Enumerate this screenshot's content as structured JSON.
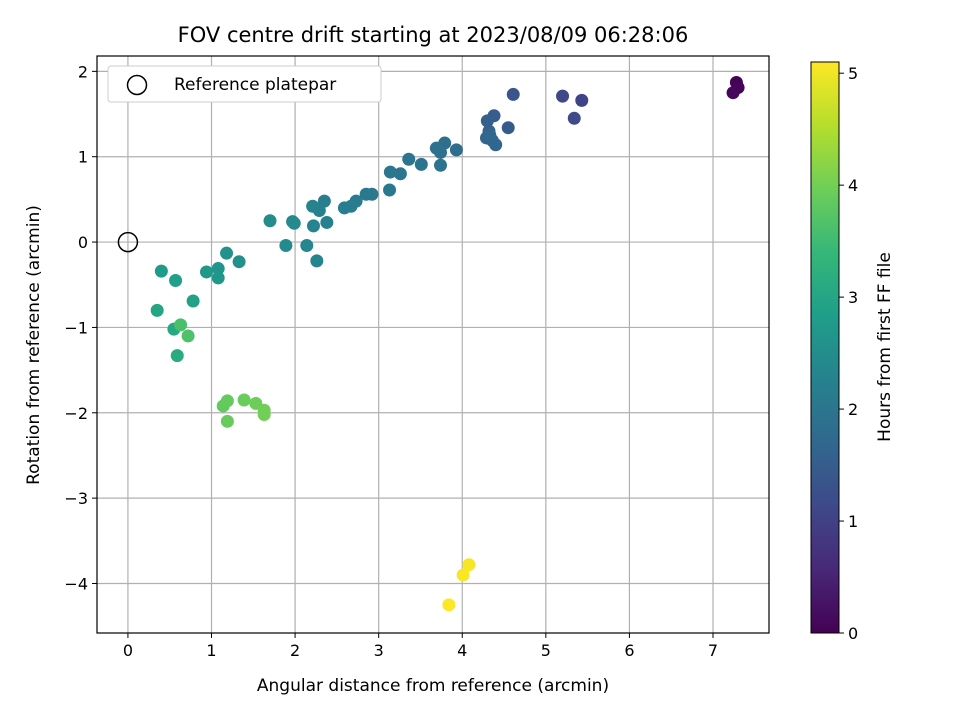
{
  "chart_data": {
    "type": "scatter",
    "title": "FOV centre drift starting at 2023/08/09 06:28:06",
    "xlabel": "Angular distance from reference (arcmin)",
    "ylabel": "Rotation from reference (arcmin)",
    "xlim": [
      -0.37,
      7.67
    ],
    "ylim": [
      -4.58,
      2.18
    ],
    "x_ticks": [
      0,
      1,
      2,
      3,
      4,
      5,
      6,
      7
    ],
    "y_ticks": [
      -4,
      -3,
      -2,
      -1,
      0,
      1,
      2
    ],
    "x_tick_labels": [
      "0",
      "1",
      "2",
      "3",
      "4",
      "5",
      "6",
      "7"
    ],
    "y_tick_labels": [
      "−4",
      "−3",
      "−2",
      "−1",
      "0",
      "1",
      "2"
    ],
    "grid": true,
    "legend": {
      "placement": "top-left",
      "entries": [
        {
          "label": "Reference platepar",
          "marker": "open-circle"
        }
      ]
    },
    "reference_point": {
      "x": 0,
      "y": 0
    },
    "colorbar": {
      "label": "Hours from first FF file",
      "range": [
        0,
        5.1
      ],
      "ticks": [
        0,
        1,
        2,
        3,
        4,
        5
      ],
      "tick_labels": [
        "0",
        "1",
        "2",
        "3",
        "4",
        "5"
      ],
      "colormap": "viridis",
      "stops": [
        "#440154",
        "#482878",
        "#3e4989",
        "#31688e",
        "#26828e",
        "#1f9e89",
        "#35b779",
        "#6ece58",
        "#b5de2b",
        "#fde725"
      ]
    },
    "points": [
      {
        "x": 7.28,
        "y": 1.87,
        "c": 0.02
      },
      {
        "x": 7.3,
        "y": 1.81,
        "c": 0.05
      },
      {
        "x": 7.24,
        "y": 1.75,
        "c": 0.08
      },
      {
        "x": 5.43,
        "y": 1.66,
        "c": 1.05
      },
      {
        "x": 5.2,
        "y": 1.71,
        "c": 1.1
      },
      {
        "x": 5.34,
        "y": 1.45,
        "c": 1.15
      },
      {
        "x": 4.61,
        "y": 1.73,
        "c": 1.35
      },
      {
        "x": 4.55,
        "y": 1.34,
        "c": 1.45
      },
      {
        "x": 4.38,
        "y": 1.48,
        "c": 1.5
      },
      {
        "x": 4.3,
        "y": 1.42,
        "c": 1.55
      },
      {
        "x": 4.32,
        "y": 1.3,
        "c": 1.58
      },
      {
        "x": 4.29,
        "y": 1.22,
        "c": 1.62
      },
      {
        "x": 4.36,
        "y": 1.19,
        "c": 1.65
      },
      {
        "x": 4.4,
        "y": 1.14,
        "c": 1.68
      },
      {
        "x": 4.33,
        "y": 1.25,
        "c": 1.72
      },
      {
        "x": 3.93,
        "y": 1.08,
        "c": 1.8
      },
      {
        "x": 3.79,
        "y": 1.16,
        "c": 1.85
      },
      {
        "x": 3.69,
        "y": 1.1,
        "c": 1.88
      },
      {
        "x": 3.74,
        "y": 1.05,
        "c": 1.9
      },
      {
        "x": 3.74,
        "y": 0.9,
        "c": 1.92
      },
      {
        "x": 3.51,
        "y": 0.91,
        "c": 1.95
      },
      {
        "x": 3.36,
        "y": 0.97,
        "c": 1.98
      },
      {
        "x": 3.26,
        "y": 0.8,
        "c": 2.0
      },
      {
        "x": 3.14,
        "y": 0.82,
        "c": 2.02
      },
      {
        "x": 3.13,
        "y": 0.61,
        "c": 2.05
      },
      {
        "x": 2.92,
        "y": 0.56,
        "c": 2.08
      },
      {
        "x": 2.85,
        "y": 0.56,
        "c": 2.1
      },
      {
        "x": 2.73,
        "y": 0.48,
        "c": 2.12
      },
      {
        "x": 2.67,
        "y": 0.42,
        "c": 2.15
      },
      {
        "x": 2.59,
        "y": 0.4,
        "c": 2.18
      },
      {
        "x": 2.35,
        "y": 0.48,
        "c": 2.2
      },
      {
        "x": 2.38,
        "y": 0.23,
        "c": 2.22
      },
      {
        "x": 2.29,
        "y": 0.37,
        "c": 2.25
      },
      {
        "x": 2.21,
        "y": 0.42,
        "c": 2.28
      },
      {
        "x": 2.22,
        "y": 0.19,
        "c": 2.3
      },
      {
        "x": 2.26,
        "y": -0.22,
        "c": 2.32
      },
      {
        "x": 2.14,
        "y": -0.04,
        "c": 2.35
      },
      {
        "x": 1.97,
        "y": 0.24,
        "c": 2.4
      },
      {
        "x": 1.99,
        "y": 0.22,
        "c": 2.42
      },
      {
        "x": 1.89,
        "y": -0.04,
        "c": 2.45
      },
      {
        "x": 1.7,
        "y": 0.25,
        "c": 2.48
      },
      {
        "x": 1.33,
        "y": -0.23,
        "c": 2.55
      },
      {
        "x": 1.18,
        "y": -0.13,
        "c": 2.6
      },
      {
        "x": 1.08,
        "y": -0.31,
        "c": 2.65
      },
      {
        "x": 1.08,
        "y": -0.42,
        "c": 2.68
      },
      {
        "x": 0.94,
        "y": -0.35,
        "c": 2.72
      },
      {
        "x": 0.4,
        "y": -0.34,
        "c": 2.8
      },
      {
        "x": 0.57,
        "y": -0.45,
        "c": 2.85
      },
      {
        "x": 0.78,
        "y": -0.69,
        "c": 2.9
      },
      {
        "x": 0.35,
        "y": -0.8,
        "c": 3.0
      },
      {
        "x": 0.55,
        "y": -1.02,
        "c": 3.05
      },
      {
        "x": 0.59,
        "y": -1.33,
        "c": 3.1
      },
      {
        "x": 0.63,
        "y": -0.97,
        "c": 3.6
      },
      {
        "x": 0.72,
        "y": -1.1,
        "c": 3.65
      },
      {
        "x": 1.14,
        "y": -1.92,
        "c": 3.85
      },
      {
        "x": 1.19,
        "y": -1.86,
        "c": 3.88
      },
      {
        "x": 1.19,
        "y": -2.1,
        "c": 3.9
      },
      {
        "x": 1.39,
        "y": -1.85,
        "c": 3.92
      },
      {
        "x": 1.53,
        "y": -1.89,
        "c": 3.95
      },
      {
        "x": 1.63,
        "y": -1.97,
        "c": 3.98
      },
      {
        "x": 1.63,
        "y": -2.02,
        "c": 4.0
      },
      {
        "x": 4.08,
        "y": -3.78,
        "c": 5.05
      },
      {
        "x": 4.01,
        "y": -3.9,
        "c": 5.07
      },
      {
        "x": 3.84,
        "y": -4.25,
        "c": 5.1
      }
    ]
  }
}
